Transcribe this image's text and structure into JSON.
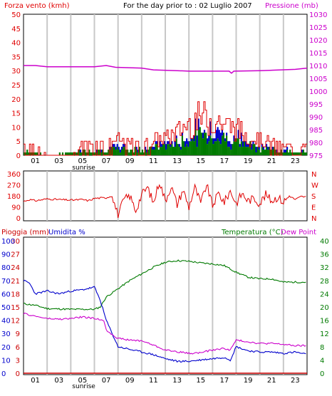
{
  "header": {
    "wind_label": "Forza vento (kmh)",
    "title": "For the day prior to : 02 Luglio 2007",
    "pressure_label": "Pressione (mb)"
  },
  "bottom_header": {
    "rain_label": "Pioggia (mm)",
    "humidity_label": "Umidita %",
    "temp_label": "Temperatura (°C)",
    "dew_label": "Dew Point"
  },
  "colors": {
    "wind": "#e00000",
    "pressure": "#cc00cc",
    "temperature": "#007a00",
    "humidity": "#0000cc",
    "dewpoint": "#cc00cc",
    "direction": "#e00000",
    "rain": "#cc0000",
    "grid": "#c8c8c8"
  },
  "x_hours": [
    "01",
    "03",
    "05",
    "07",
    "09",
    "11",
    "13",
    "15",
    "17",
    "19",
    "21",
    "23"
  ],
  "sunrise_label": "sunrise",
  "direction_labels": [
    "N",
    "W",
    "S",
    "E",
    "N"
  ],
  "chart_data": [
    {
      "type": "line",
      "name": "wind-pressure",
      "x_range": [
        0,
        24
      ],
      "ylim_left": [
        0,
        50
      ],
      "yticks_left": [
        0,
        5,
        10,
        15,
        20,
        25,
        30,
        35,
        40,
        45,
        50
      ],
      "ylim_right": [
        975,
        1030
      ],
      "yticks_right": [
        975,
        980,
        985,
        990,
        995,
        1000,
        1005,
        1010,
        1015,
        1020,
        1025,
        1030
      ],
      "pressure": [
        [
          0,
          1010
        ],
        [
          1,
          1010
        ],
        [
          2,
          1009.5
        ],
        [
          6,
          1009.5
        ],
        [
          7,
          1010
        ],
        [
          7.8,
          1009.3
        ],
        [
          10,
          1009
        ],
        [
          11,
          1008.3
        ],
        [
          13,
          1008
        ],
        [
          14,
          1007.8
        ],
        [
          17.4,
          1007.8
        ],
        [
          17.6,
          1007
        ],
        [
          17.8,
          1007.8
        ],
        [
          20,
          1008
        ],
        [
          23,
          1008.5
        ],
        [
          24,
          1009
        ]
      ],
      "wind_gust_max": [
        [
          0,
          6
        ],
        [
          1,
          5
        ],
        [
          2,
          0
        ],
        [
          3,
          0
        ],
        [
          4,
          0
        ],
        [
          5,
          6
        ],
        [
          6,
          6
        ],
        [
          7,
          6
        ],
        [
          8,
          8
        ],
        [
          9,
          6
        ],
        [
          10,
          5
        ],
        [
          11,
          8
        ],
        [
          12,
          9
        ],
        [
          13,
          12
        ],
        [
          14,
          17
        ],
        [
          15,
          20
        ],
        [
          16,
          19
        ],
        [
          17,
          16
        ],
        [
          18,
          14
        ],
        [
          19,
          10
        ],
        [
          20,
          8
        ],
        [
          21,
          6
        ],
        [
          22,
          4
        ],
        [
          23,
          6
        ],
        [
          24,
          4
        ]
      ],
      "wind_avg_max": [
        [
          0,
          2
        ],
        [
          2,
          0
        ],
        [
          5,
          2
        ],
        [
          7,
          3
        ],
        [
          9,
          3
        ],
        [
          11,
          4
        ],
        [
          13,
          6
        ],
        [
          14,
          8
        ],
        [
          15,
          11
        ],
        [
          16,
          10
        ],
        [
          17,
          9
        ],
        [
          18,
          7
        ],
        [
          19,
          5
        ],
        [
          20,
          4
        ],
        [
          22,
          2
        ],
        [
          24,
          2
        ]
      ]
    },
    {
      "type": "line",
      "name": "wind-direction",
      "x_range": [
        0,
        24
      ],
      "ylim": [
        0,
        360
      ],
      "yticks": [
        0,
        90,
        180,
        270,
        360
      ],
      "direction": [
        [
          0,
          135
        ],
        [
          0.5,
          150
        ],
        [
          1,
          140
        ],
        [
          2,
          155
        ],
        [
          3,
          150
        ],
        [
          4,
          145
        ],
        [
          5,
          150
        ],
        [
          5.5,
          140
        ],
        [
          6,
          160
        ],
        [
          7,
          165
        ],
        [
          7.5,
          180
        ],
        [
          8,
          20
        ],
        [
          8.5,
          150
        ],
        [
          9,
          180
        ],
        [
          9.5,
          60
        ],
        [
          10,
          190
        ],
        [
          10.5,
          250
        ],
        [
          11,
          120
        ],
        [
          11.5,
          300
        ],
        [
          12,
          140
        ],
        [
          12.5,
          260
        ],
        [
          13,
          110
        ],
        [
          13.5,
          230
        ],
        [
          14,
          90
        ],
        [
          14.5,
          250
        ],
        [
          15,
          120
        ],
        [
          15.5,
          270
        ],
        [
          16,
          100
        ],
        [
          16.5,
          200
        ],
        [
          17,
          130
        ],
        [
          17.5,
          220
        ],
        [
          18,
          120
        ],
        [
          18.5,
          200
        ],
        [
          19,
          140
        ],
        [
          19.5,
          160
        ],
        [
          20,
          120
        ],
        [
          20.5,
          190
        ],
        [
          21,
          140
        ],
        [
          21.5,
          170
        ],
        [
          22,
          130
        ],
        [
          22.5,
          180
        ],
        [
          23,
          150
        ],
        [
          23.5,
          175
        ],
        [
          24,
          170
        ]
      ]
    },
    {
      "type": "line",
      "name": "temp-humidity",
      "x_range": [
        0,
        24
      ],
      "rain_axis": [
        0,
        30
      ],
      "rain_ticks": [
        0,
        3,
        6,
        9,
        12,
        15,
        18,
        21,
        24,
        27,
        30
      ],
      "humidity_axis": [
        0,
        100
      ],
      "humidity_ticks": [
        0,
        10,
        20,
        30,
        40,
        50,
        60,
        70,
        80,
        90,
        100
      ],
      "temp_axis": [
        0,
        40
      ],
      "temp_ticks": [
        0,
        4,
        8,
        12,
        16,
        20,
        24,
        28,
        32,
        36,
        40
      ],
      "rain": [
        [
          0,
          0
        ],
        [
          24,
          0
        ]
      ],
      "temperature": [
        [
          0,
          21
        ],
        [
          1,
          20.5
        ],
        [
          2,
          19.5
        ],
        [
          4,
          19.3
        ],
        [
          6,
          19.3
        ],
        [
          6.5,
          20
        ],
        [
          7,
          23
        ],
        [
          8,
          25.5
        ],
        [
          9,
          28
        ],
        [
          10,
          30
        ],
        [
          11,
          32
        ],
        [
          12,
          33.5
        ],
        [
          13,
          34
        ],
        [
          14,
          33.8
        ],
        [
          15,
          33.3
        ],
        [
          16,
          33
        ],
        [
          17,
          32.5
        ],
        [
          18,
          30.5
        ],
        [
          19,
          29
        ],
        [
          20,
          28.5
        ],
        [
          21,
          28.5
        ],
        [
          22,
          27.5
        ],
        [
          23,
          27.5
        ],
        [
          24,
          27.5
        ]
      ],
      "humidity": [
        [
          0,
          70
        ],
        [
          0.5,
          68
        ],
        [
          1,
          60
        ],
        [
          2,
          62
        ],
        [
          3,
          60
        ],
        [
          4,
          62
        ],
        [
          5,
          63
        ],
        [
          6,
          65
        ],
        [
          6.5,
          55
        ],
        [
          7,
          40
        ],
        [
          8,
          20
        ],
        [
          9,
          18
        ],
        [
          10,
          16
        ],
        [
          11,
          14
        ],
        [
          12,
          11
        ],
        [
          13,
          9
        ],
        [
          14,
          9
        ],
        [
          15,
          10
        ],
        [
          16,
          11
        ],
        [
          17,
          12
        ],
        [
          17.5,
          10
        ],
        [
          18,
          20
        ],
        [
          19,
          17
        ],
        [
          20,
          16
        ],
        [
          21,
          16
        ],
        [
          22,
          15
        ],
        [
          23,
          16
        ],
        [
          24,
          14
        ]
      ],
      "dewpoint": [
        [
          0,
          18
        ],
        [
          1,
          17.2
        ],
        [
          2,
          16.5
        ],
        [
          3,
          16.3
        ],
        [
          4,
          16.5
        ],
        [
          5,
          17
        ],
        [
          6,
          16.5
        ],
        [
          6.8,
          16
        ],
        [
          7,
          13
        ],
        [
          8,
          10.5
        ],
        [
          9,
          10
        ],
        [
          10,
          9.8
        ],
        [
          11,
          8.5
        ],
        [
          12,
          7
        ],
        [
          13,
          6.5
        ],
        [
          14,
          6
        ],
        [
          15,
          6.2
        ],
        [
          16,
          7
        ],
        [
          17,
          7.5
        ],
        [
          17.5,
          7
        ],
        [
          18,
          10
        ],
        [
          19,
          9.5
        ],
        [
          20,
          9
        ],
        [
          21,
          9
        ],
        [
          22,
          8.7
        ],
        [
          23,
          8.3
        ],
        [
          24,
          8.3
        ]
      ]
    }
  ]
}
